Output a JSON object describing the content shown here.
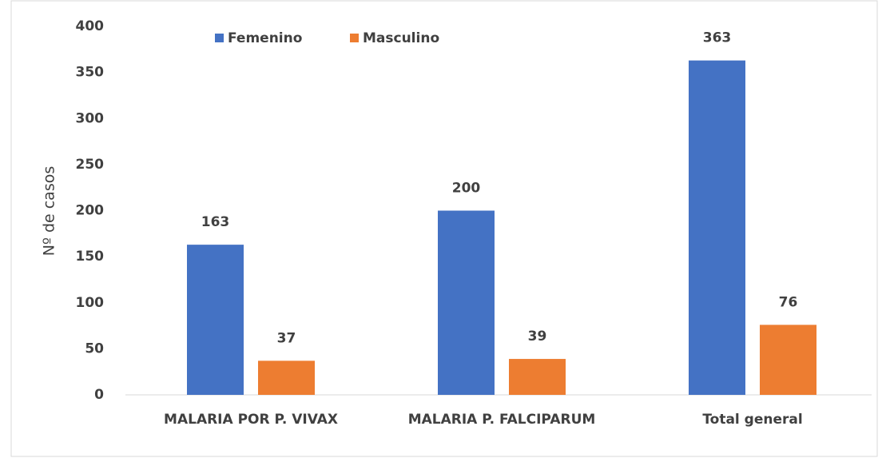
{
  "chart_data": {
    "type": "bar",
    "y_label": "Nº de casos",
    "categories": [
      "MALARIA POR P. VIVAX",
      "MALARIA P. FALCIPARUM",
      "Total general"
    ],
    "series": [
      {
        "name": "Femenino",
        "color": "#4472c4",
        "values": [
          163,
          200,
          363
        ]
      },
      {
        "name": "Masculino",
        "color": "#ed7d31",
        "values": [
          37,
          39,
          76
        ]
      }
    ],
    "ylim": [
      0,
      400
    ],
    "yticks": [
      0,
      50,
      100,
      150,
      200,
      250,
      300,
      350,
      400
    ],
    "grid": false,
    "legend": "top"
  }
}
